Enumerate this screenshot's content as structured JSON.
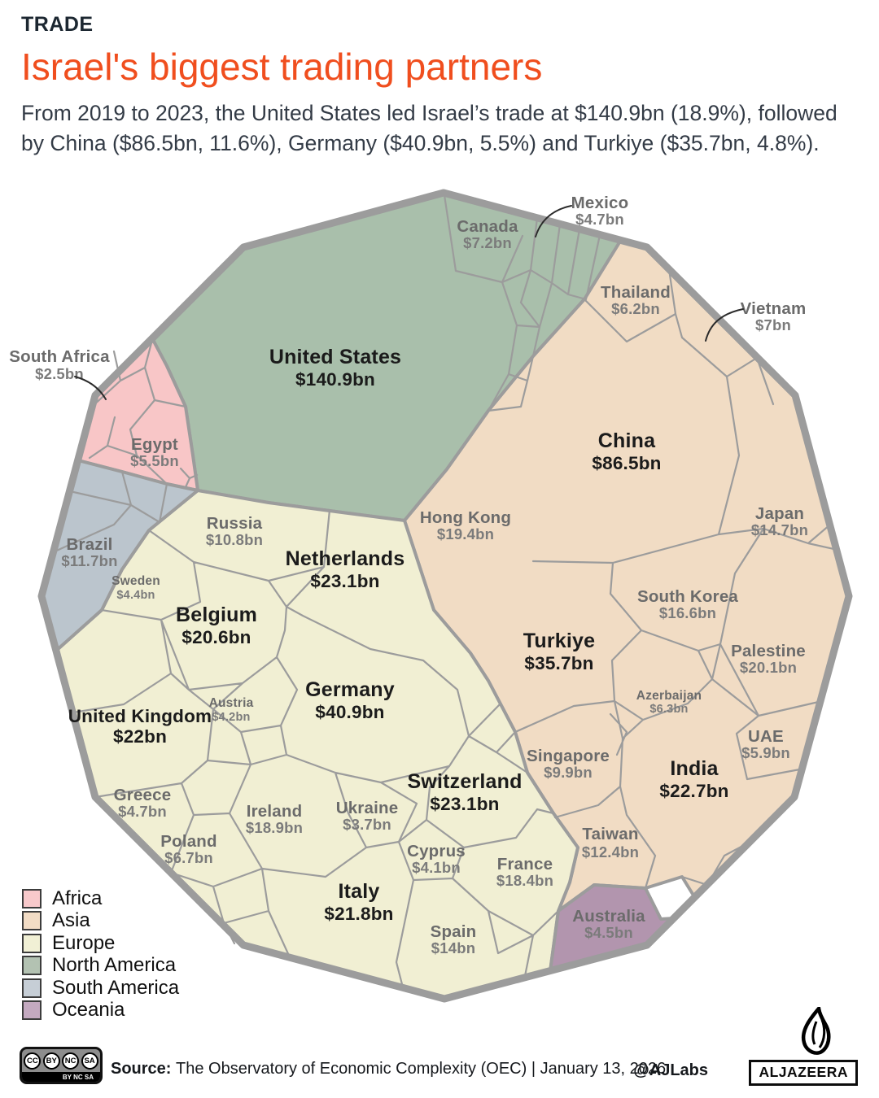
{
  "header": {
    "kicker": "TRADE",
    "title": "Israel's biggest trading partners",
    "subtitle_line1": "From 2019 to 2023, the United States led Israel’s trade at $140.9bn (18.9%), followed",
    "subtitle_line2": "by China ($86.5bn, 11.6%), Germany ($40.9bn, 5.5%) and Turkiye ($35.7bn, 4.8%)."
  },
  "chart_data": {
    "type": "treemap",
    "variant": "voronoi-treemap",
    "title": "Israel's biggest trading partners",
    "period": "2019 to 2023",
    "unit": "US$ billions",
    "outer_shape": "dodecagon",
    "legend_position": "bottom-left",
    "continent_colors": {
      "Africa": "#f8c6c7",
      "Asia": "#f1dcc4",
      "Europe": "#f1efd3",
      "North America": "#a9bfab",
      "South America": "#bbc5cd",
      "Oceania": "#b295ae"
    },
    "highlights": [
      {
        "name": "United States",
        "value_bn": 140.9,
        "share_pct": 18.9
      },
      {
        "name": "China",
        "value_bn": 86.5,
        "share_pct": 11.6
      },
      {
        "name": "Germany",
        "value_bn": 40.9,
        "share_pct": 5.5
      },
      {
        "name": "Turkiye",
        "value_bn": 35.7,
        "share_pct": 4.8
      }
    ],
    "countries": [
      {
        "id": "us",
        "name": "United States",
        "label": "$140.9bn",
        "value_bn": 140.9,
        "continent": "North America"
      },
      {
        "id": "canada",
        "name": "Canada",
        "label": "$7.2bn",
        "value_bn": 7.2,
        "continent": "North America"
      },
      {
        "id": "mexico",
        "name": "Mexico",
        "label": "$4.7bn",
        "value_bn": 4.7,
        "continent": "North America"
      },
      {
        "id": "china",
        "name": "China",
        "label": "$86.5bn",
        "value_bn": 86.5,
        "continent": "Asia"
      },
      {
        "id": "hong-kong",
        "name": "Hong Kong",
        "label": "$19.4bn",
        "value_bn": 19.4,
        "continent": "Asia"
      },
      {
        "id": "turkiye",
        "name": "Turkiye",
        "label": "$35.7bn",
        "value_bn": 35.7,
        "continent": "Asia"
      },
      {
        "id": "thailand",
        "name": "Thailand",
        "label": "$6.2bn",
        "value_bn": 6.2,
        "continent": "Asia"
      },
      {
        "id": "vietnam",
        "name": "Vietnam",
        "label": "$7bn",
        "value_bn": 7,
        "continent": "Asia"
      },
      {
        "id": "japan",
        "name": "Japan",
        "label": "$14.7bn",
        "value_bn": 14.7,
        "continent": "Asia"
      },
      {
        "id": "south-korea",
        "name": "South Korea",
        "label": "$16.6bn",
        "value_bn": 16.6,
        "continent": "Asia"
      },
      {
        "id": "palestine",
        "name": "Palestine",
        "label": "$20.1bn",
        "value_bn": 20.1,
        "continent": "Asia"
      },
      {
        "id": "azerbaijan",
        "name": "Azerbaijan",
        "label": "$6.3bn",
        "value_bn": 6.3,
        "continent": "Asia"
      },
      {
        "id": "uae",
        "name": "UAE",
        "label": "$5.9bn",
        "value_bn": 5.9,
        "continent": "Asia"
      },
      {
        "id": "india",
        "name": "India",
        "label": "$22.7bn",
        "value_bn": 22.7,
        "continent": "Asia"
      },
      {
        "id": "singapore",
        "name": "Singapore",
        "label": "$9.9bn",
        "value_bn": 9.9,
        "continent": "Asia"
      },
      {
        "id": "taiwan",
        "name": "Taiwan",
        "label": "$12.4bn",
        "value_bn": 12.4,
        "continent": "Asia"
      },
      {
        "id": "russia",
        "name": "Russia",
        "label": "$10.8bn",
        "value_bn": 10.8,
        "continent": "Europe"
      },
      {
        "id": "netherlands",
        "name": "Netherlands",
        "label": "$23.1bn",
        "value_bn": 23.1,
        "continent": "Europe"
      },
      {
        "id": "sweden",
        "name": "Sweden",
        "label": "$4.4bn",
        "value_bn": 4.4,
        "continent": "Europe"
      },
      {
        "id": "belgium",
        "name": "Belgium",
        "label": "$20.6bn",
        "value_bn": 20.6,
        "continent": "Europe"
      },
      {
        "id": "united-kingdom",
        "name": "United Kingdom",
        "label": "$22bn",
        "value_bn": 22,
        "continent": "Europe"
      },
      {
        "id": "austria",
        "name": "Austria",
        "label": "$4.2bn",
        "value_bn": 4.2,
        "continent": "Europe"
      },
      {
        "id": "germany",
        "name": "Germany",
        "label": "$40.9bn",
        "value_bn": 40.9,
        "continent": "Europe"
      },
      {
        "id": "greece",
        "name": "Greece",
        "label": "$4.7bn",
        "value_bn": 4.7,
        "continent": "Europe"
      },
      {
        "id": "ireland",
        "name": "Ireland",
        "label": "$18.9bn",
        "value_bn": 18.9,
        "continent": "Europe"
      },
      {
        "id": "ukraine",
        "name": "Ukraine",
        "label": "$3.7bn",
        "value_bn": 3.7,
        "continent": "Europe"
      },
      {
        "id": "poland",
        "name": "Poland",
        "label": "$6.7bn",
        "value_bn": 6.7,
        "continent": "Europe"
      },
      {
        "id": "italy",
        "name": "Italy",
        "label": "$21.8bn",
        "value_bn": 21.8,
        "continent": "Europe"
      },
      {
        "id": "cyprus",
        "name": "Cyprus",
        "label": "$4.1bn",
        "value_bn": 4.1,
        "continent": "Europe"
      },
      {
        "id": "switzerland",
        "name": "Switzerland",
        "label": "$23.1bn",
        "value_bn": 23.1,
        "continent": "Europe"
      },
      {
        "id": "france",
        "name": "France",
        "label": "$18.4bn",
        "value_bn": 18.4,
        "continent": "Europe"
      },
      {
        "id": "spain",
        "name": "Spain",
        "label": "$14bn",
        "value_bn": 14,
        "continent": "Europe"
      },
      {
        "id": "south-africa",
        "name": "South Africa",
        "label": "$2.5bn",
        "value_bn": 2.5,
        "continent": "Africa"
      },
      {
        "id": "egypt",
        "name": "Egypt",
        "label": "$5.5bn",
        "value_bn": 5.5,
        "continent": "Africa"
      },
      {
        "id": "brazil",
        "name": "Brazil",
        "label": "$11.7bn",
        "value_bn": 11.7,
        "continent": "South America"
      },
      {
        "id": "australia",
        "name": "Australia",
        "label": "$4.5bn",
        "value_bn": 4.5,
        "continent": "Oceania"
      }
    ]
  },
  "legend": {
    "items": [
      {
        "label": "Africa",
        "color": "#f8c9cb"
      },
      {
        "label": "Asia",
        "color": "#f2dcc5"
      },
      {
        "label": "Europe",
        "color": "#f1f0d5"
      },
      {
        "label": "North America",
        "color": "#b3c2b2"
      },
      {
        "label": "South America",
        "color": "#c6ced6"
      },
      {
        "label": "Oceania",
        "color": "#c4a9c0"
      }
    ]
  },
  "footer": {
    "cc": [
      "CC",
      "BY",
      "NC",
      "SA"
    ],
    "cc_strip": "BY NC SA",
    "source_label": "Source:",
    "source_text": "The Observatory of Economic Complexity (OEC) | January 13, 2026",
    "credit": "@AJLabs",
    "brand": "ALJAZEERA"
  }
}
